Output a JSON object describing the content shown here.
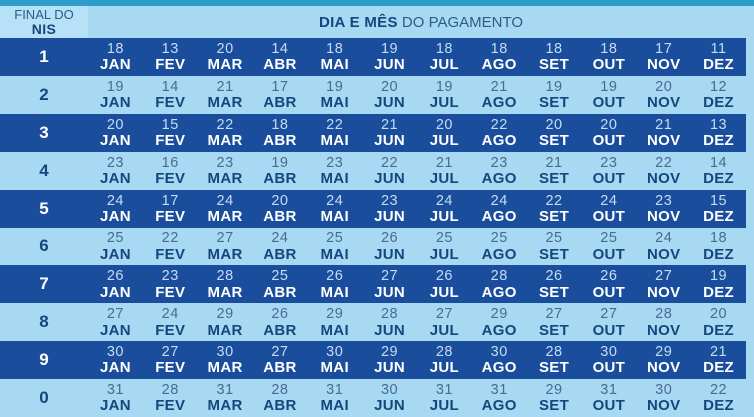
{
  "header": {
    "nis_label_line1": "FINAL DO",
    "nis_label_line2": "NIS",
    "title_bold": "DIA E MÊS",
    "title_regular": " DO PAGAMENTO"
  },
  "colors": {
    "top_strip": "#2f9dc9",
    "light_blue_bg": "#a8d9f2",
    "header_left_bg": "#b7e1f6",
    "dark_row_bg": "#1a4e9c",
    "dark_row_day_text": "#c7dcf2",
    "dark_row_month_text": "#ffffff",
    "light_row_day_text": "#4a6a90",
    "light_row_month_text": "#15477f"
  },
  "chart_data": {
    "type": "table",
    "title": "DIA E MÊS DO PAGAMENTO",
    "row_header_label": "FINAL DO NIS",
    "columns": [
      "JAN",
      "FEV",
      "MAR",
      "ABR",
      "MAI",
      "JUN",
      "JUL",
      "AGO",
      "SET",
      "OUT",
      "NOV",
      "DEZ"
    ],
    "rows": [
      {
        "nis": "1",
        "days": [
          18,
          13,
          20,
          14,
          18,
          19,
          18,
          18,
          18,
          18,
          17,
          11
        ]
      },
      {
        "nis": "2",
        "days": [
          19,
          14,
          21,
          17,
          19,
          20,
          19,
          21,
          19,
          19,
          20,
          12
        ]
      },
      {
        "nis": "3",
        "days": [
          20,
          15,
          22,
          18,
          22,
          21,
          20,
          22,
          20,
          20,
          21,
          13
        ]
      },
      {
        "nis": "4",
        "days": [
          23,
          16,
          23,
          19,
          23,
          22,
          21,
          23,
          21,
          23,
          22,
          14
        ]
      },
      {
        "nis": "5",
        "days": [
          24,
          17,
          24,
          20,
          24,
          23,
          24,
          24,
          22,
          24,
          23,
          15
        ]
      },
      {
        "nis": "6",
        "days": [
          25,
          22,
          27,
          24,
          25,
          26,
          25,
          25,
          25,
          25,
          24,
          18
        ]
      },
      {
        "nis": "7",
        "days": [
          26,
          23,
          28,
          25,
          26,
          27,
          26,
          28,
          26,
          26,
          27,
          19
        ]
      },
      {
        "nis": "8",
        "days": [
          27,
          24,
          29,
          26,
          29,
          28,
          27,
          29,
          27,
          27,
          28,
          20
        ]
      },
      {
        "nis": "9",
        "days": [
          30,
          27,
          30,
          27,
          30,
          29,
          28,
          30,
          28,
          30,
          29,
          21
        ]
      },
      {
        "nis": "0",
        "days": [
          31,
          28,
          31,
          28,
          31,
          30,
          31,
          31,
          29,
          31,
          30,
          22
        ]
      }
    ]
  }
}
